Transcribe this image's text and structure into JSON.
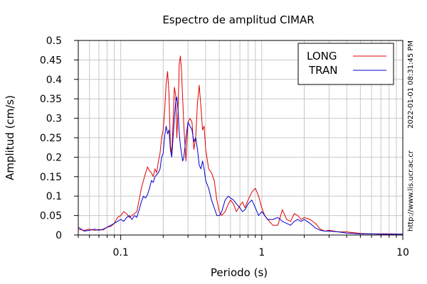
{
  "chart_data": {
    "type": "line",
    "title": "Espectro de amplitud CIMAR",
    "xlabel": "Periodo (s)",
    "ylabel": "Amplitud (cm/s)",
    "x_scale": "log",
    "xlim": [
      0.05,
      10
    ],
    "ylim": [
      0,
      0.5
    ],
    "x_tick_labels": [
      {
        "value": 0.1,
        "label": "0.1"
      },
      {
        "value": 1,
        "label": "1"
      },
      {
        "value": 10,
        "label": "10"
      }
    ],
    "y_ticks": [
      0,
      0.05,
      0.1,
      0.15,
      0.2,
      0.25,
      0.3,
      0.35,
      0.4,
      0.45,
      0.5
    ],
    "y_tick_labels": [
      "0",
      "0.05",
      "0.1",
      "0.15",
      "0.2",
      "0.25",
      "0.3",
      "0.35",
      "0.4",
      "0.45",
      "0.5"
    ],
    "grid": true,
    "legend_position": "top-right",
    "side_text_1": "2022-01-01 08:31:45 PM",
    "side_text_2": "http://www.lis.ucr.ac.cr",
    "series": [
      {
        "name": "LONG",
        "color": "#e00000",
        "x": [
          0.05,
          0.055,
          0.06,
          0.065,
          0.07,
          0.075,
          0.08,
          0.085,
          0.09,
          0.095,
          0.1,
          0.105,
          0.11,
          0.115,
          0.12,
          0.125,
          0.13,
          0.135,
          0.14,
          0.145,
          0.15,
          0.155,
          0.16,
          0.165,
          0.17,
          0.175,
          0.18,
          0.185,
          0.19,
          0.195,
          0.2,
          0.205,
          0.21,
          0.215,
          0.22,
          0.225,
          0.23,
          0.235,
          0.24,
          0.245,
          0.25,
          0.255,
          0.26,
          0.265,
          0.27,
          0.275,
          0.28,
          0.29,
          0.3,
          0.31,
          0.32,
          0.33,
          0.34,
          0.35,
          0.36,
          0.37,
          0.38,
          0.39,
          0.4,
          0.42,
          0.44,
          0.46,
          0.48,
          0.5,
          0.52,
          0.55,
          0.58,
          0.6,
          0.63,
          0.66,
          0.7,
          0.73,
          0.76,
          0.8,
          0.85,
          0.9,
          0.95,
          1.0,
          1.05,
          1.1,
          1.2,
          1.3,
          1.4,
          1.5,
          1.6,
          1.7,
          1.8,
          1.9,
          2.0,
          2.2,
          2.4,
          2.6,
          2.8,
          3.0,
          3.5,
          4.0,
          5.0,
          6.0,
          7.0,
          8.0,
          10.0
        ],
        "values": [
          0.015,
          0.012,
          0.015,
          0.012,
          0.014,
          0.013,
          0.02,
          0.022,
          0.03,
          0.045,
          0.05,
          0.06,
          0.055,
          0.045,
          0.05,
          0.055,
          0.06,
          0.09,
          0.12,
          0.14,
          0.16,
          0.175,
          0.165,
          0.16,
          0.15,
          0.17,
          0.16,
          0.19,
          0.21,
          0.25,
          0.27,
          0.32,
          0.39,
          0.42,
          0.36,
          0.23,
          0.21,
          0.29,
          0.38,
          0.36,
          0.25,
          0.32,
          0.44,
          0.46,
          0.42,
          0.35,
          0.28,
          0.19,
          0.29,
          0.3,
          0.29,
          0.22,
          0.25,
          0.34,
          0.385,
          0.33,
          0.27,
          0.28,
          0.22,
          0.17,
          0.16,
          0.14,
          0.09,
          0.06,
          0.05,
          0.06,
          0.08,
          0.09,
          0.08,
          0.06,
          0.075,
          0.085,
          0.07,
          0.09,
          0.11,
          0.12,
          0.1,
          0.07,
          0.05,
          0.04,
          0.025,
          0.025,
          0.065,
          0.04,
          0.035,
          0.055,
          0.05,
          0.04,
          0.045,
          0.04,
          0.03,
          0.015,
          0.01,
          0.012,
          0.008,
          0.008,
          0.004,
          0.003,
          0.003,
          0.003,
          0.002
        ]
      },
      {
        "name": "TRAN",
        "color": "#0000cc",
        "x": [
          0.05,
          0.055,
          0.06,
          0.065,
          0.07,
          0.075,
          0.08,
          0.085,
          0.09,
          0.095,
          0.1,
          0.105,
          0.11,
          0.115,
          0.12,
          0.125,
          0.13,
          0.135,
          0.14,
          0.145,
          0.15,
          0.155,
          0.16,
          0.165,
          0.17,
          0.175,
          0.18,
          0.185,
          0.19,
          0.195,
          0.2,
          0.205,
          0.21,
          0.215,
          0.22,
          0.225,
          0.23,
          0.235,
          0.24,
          0.245,
          0.25,
          0.255,
          0.26,
          0.265,
          0.27,
          0.275,
          0.28,
          0.29,
          0.3,
          0.31,
          0.32,
          0.33,
          0.34,
          0.35,
          0.36,
          0.37,
          0.38,
          0.39,
          0.4,
          0.42,
          0.44,
          0.46,
          0.48,
          0.5,
          0.52,
          0.55,
          0.58,
          0.6,
          0.63,
          0.66,
          0.7,
          0.73,
          0.76,
          0.8,
          0.85,
          0.9,
          0.95,
          1.0,
          1.05,
          1.1,
          1.2,
          1.3,
          1.4,
          1.5,
          1.6,
          1.7,
          1.8,
          1.9,
          2.0,
          2.2,
          2.4,
          2.6,
          2.8,
          3.0,
          3.5,
          4.0,
          5.0,
          6.0,
          7.0,
          8.0,
          10.0
        ],
        "values": [
          0.02,
          0.01,
          0.012,
          0.015,
          0.012,
          0.015,
          0.02,
          0.025,
          0.03,
          0.035,
          0.04,
          0.035,
          0.045,
          0.05,
          0.04,
          0.05,
          0.045,
          0.065,
          0.085,
          0.1,
          0.095,
          0.105,
          0.12,
          0.14,
          0.135,
          0.15,
          0.155,
          0.16,
          0.17,
          0.2,
          0.21,
          0.255,
          0.28,
          0.26,
          0.27,
          0.22,
          0.2,
          0.25,
          0.3,
          0.34,
          0.355,
          0.32,
          0.26,
          0.23,
          0.21,
          0.19,
          0.2,
          0.25,
          0.29,
          0.28,
          0.27,
          0.24,
          0.25,
          0.22,
          0.18,
          0.17,
          0.19,
          0.17,
          0.14,
          0.12,
          0.09,
          0.07,
          0.05,
          0.05,
          0.06,
          0.09,
          0.1,
          0.095,
          0.09,
          0.08,
          0.07,
          0.06,
          0.065,
          0.08,
          0.09,
          0.07,
          0.05,
          0.06,
          0.05,
          0.04,
          0.04,
          0.045,
          0.035,
          0.03,
          0.025,
          0.035,
          0.04,
          0.035,
          0.04,
          0.03,
          0.018,
          0.012,
          0.01,
          0.01,
          0.008,
          0.005,
          0.003,
          0.003,
          0.002,
          0.002,
          0.002
        ]
      }
    ]
  }
}
